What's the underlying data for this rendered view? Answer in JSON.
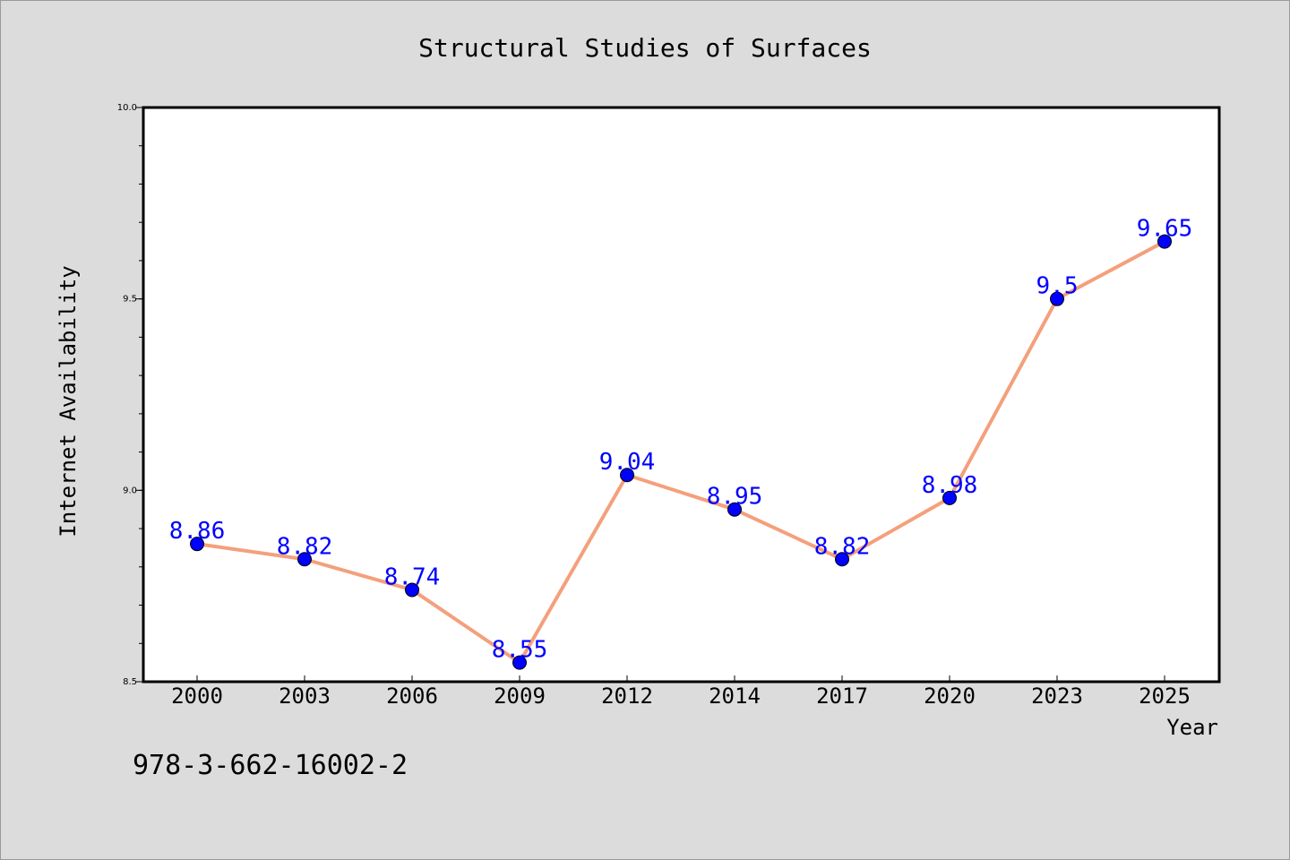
{
  "chart_data": {
    "type": "line",
    "title": "Structural Studies of Surfaces",
    "xlabel": "Year",
    "ylabel": "Internet Availability",
    "categories": [
      "2000",
      "2003",
      "2006",
      "2009",
      "2012",
      "2014",
      "2017",
      "2020",
      "2023",
      "2025"
    ],
    "series": [
      {
        "values": [
          8.86,
          8.82,
          8.74,
          8.55,
          9.04,
          8.95,
          8.82,
          8.98,
          9.5,
          9.65
        ]
      }
    ],
    "data_labels": [
      "8.86",
      "8.82",
      "8.74",
      "8.55",
      "9.04",
      "8.95",
      "8.82",
      "8.98",
      "9.5",
      "9.65"
    ],
    "ylim": [
      8.5,
      10.0
    ],
    "yticks": [
      "8.5",
      "9.0",
      "9.5",
      "10.0"
    ],
    "grid": false,
    "colors": {
      "line": "#f4a07c",
      "marker": "#0000ff",
      "label": "#0000ff",
      "background": "#dcdcdc",
      "plot_bg": "#ffffff"
    }
  },
  "footer": {
    "isbn": "978-3-662-16002-2"
  }
}
